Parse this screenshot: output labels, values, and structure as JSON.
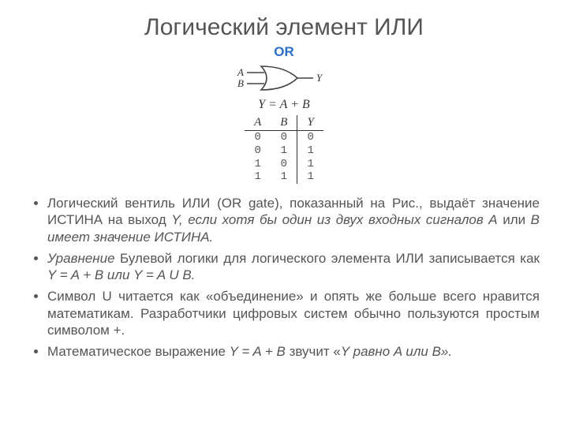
{
  "title": "Логический элемент ИЛИ",
  "figure": {
    "gate_label": "OR",
    "gate_label_color": "#2a6fc5",
    "input_labels": {
      "a": "A",
      "b": "B"
    },
    "output_label": "Y",
    "equation": "Y = A + B",
    "truth_table": {
      "columns": [
        "A",
        "B",
        "Y"
      ],
      "rows": [
        [
          "0",
          "0",
          "0"
        ],
        [
          "0",
          "1",
          "1"
        ],
        [
          "1",
          "0",
          "1"
        ],
        [
          "1",
          "1",
          "1"
        ]
      ]
    },
    "stroke_color": "#444444"
  },
  "bullets": [
    {
      "html": "Логический вентиль ИЛИ (OR gate), показанный на Рис., выдаёт значение ИСТИНА на выход <span class=\"italic\">Y, если хотя бы один из двух входных сигналов A</span> или <span class=\"italic\">B имеет значение ИСТИНА.</span>"
    },
    {
      "html": "<span class=\"italic\">Уравнение</span> Булевой логики для логического элемента ИЛИ записывается как <span class=\"italic\">Y = A + B или Y = A U B.</span>"
    },
    {
      "html": "Символ U читается как «объединение» и опять же больше всего нравится математикам. Разработчики цифровых систем обычно пользуются простым символом +."
    },
    {
      "html": "Математическое выражение <span class=\"italic\">Y = A + B</span> звучит «<span class=\"italic\">Y равно A или B».</span>"
    }
  ]
}
